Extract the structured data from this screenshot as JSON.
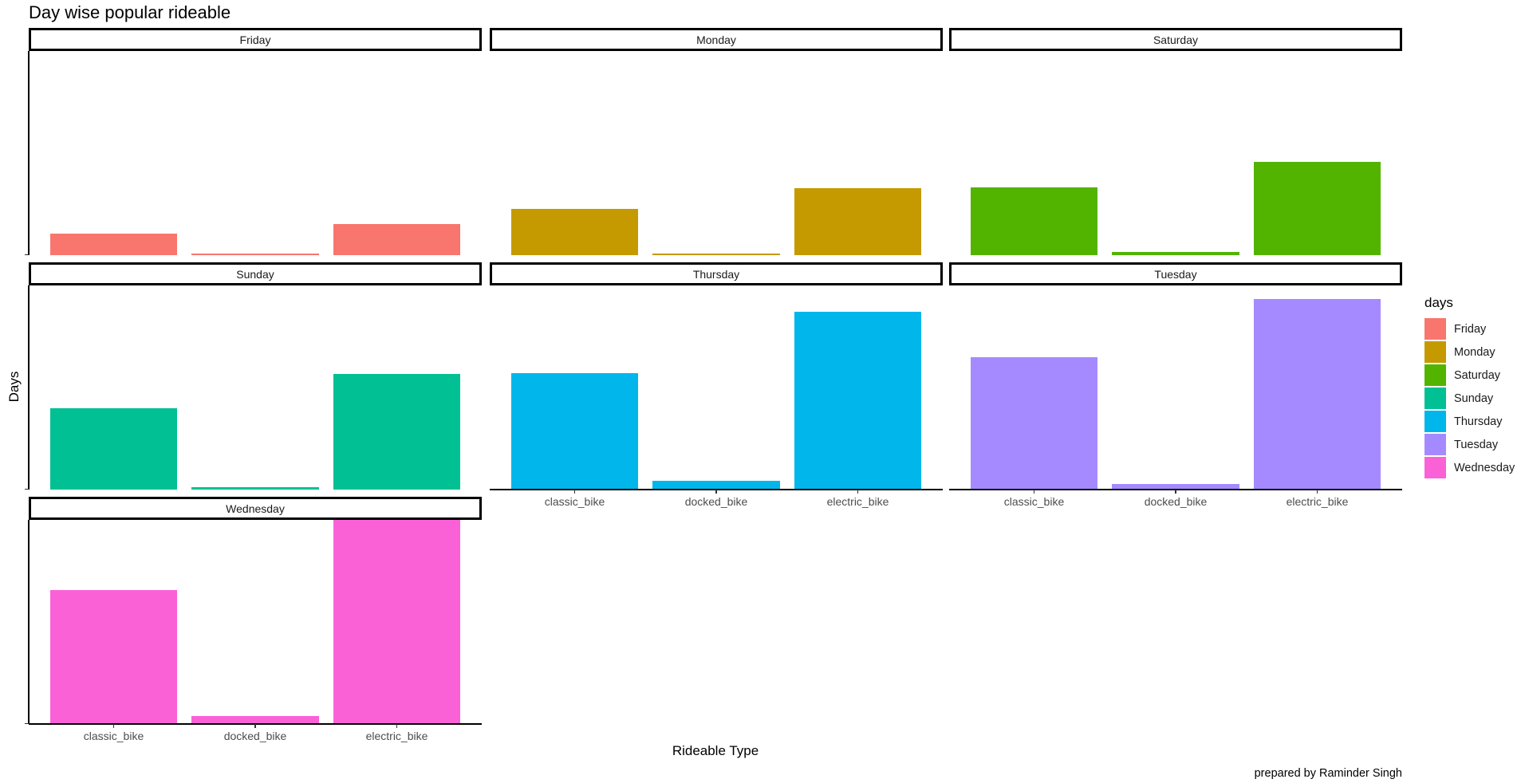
{
  "title": "Day wise popular rideable",
  "caption": "prepared by Raminder Singh",
  "x_axis_title": "Rideable Type",
  "y_axis_title": "Days",
  "legend": {
    "title": "days",
    "items": [
      {
        "label": "Friday",
        "color": "#F8766D"
      },
      {
        "label": "Monday",
        "color": "#C49A00"
      },
      {
        "label": "Saturday",
        "color": "#53B400"
      },
      {
        "label": "Sunday",
        "color": "#00C094"
      },
      {
        "label": "Thursday",
        "color": "#00B6EB"
      },
      {
        "label": "Tuesday",
        "color": "#A58AFF"
      },
      {
        "label": "Wednesday",
        "color": "#FB61D7"
      }
    ]
  },
  "chart_data": {
    "type": "bar",
    "title": "Day wise popular rideable",
    "xlabel": "Rideable Type",
    "ylabel": "Days",
    "caption": "prepared by Raminder Singh",
    "facet_by": "days",
    "facet_layout": {
      "ncol": 3,
      "nrow": 3
    },
    "categories": [
      "classic_bike",
      "docked_bike",
      "electric_bike"
    ],
    "value_scale": "relative (0-100, no y tick labels shown; Wednesday electric_bike = 100)",
    "ylim": [
      0,
      100
    ],
    "grid": false,
    "legend_position": "right",
    "series": [
      {
        "name": "Friday",
        "color": "#F8766D",
        "values": [
          10.5,
          0.8,
          15.2
        ]
      },
      {
        "name": "Monday",
        "color": "#C49A00",
        "values": [
          22.7,
          0.8,
          32.8
        ]
      },
      {
        "name": "Saturday",
        "color": "#53B400",
        "values": [
          33.2,
          1.6,
          45.7
        ]
      },
      {
        "name": "Sunday",
        "color": "#00C094",
        "values": [
          39.8,
          1.2,
          56.6
        ]
      },
      {
        "name": "Thursday",
        "color": "#00B6EB",
        "values": [
          57.0,
          4.3,
          87.1
        ]
      },
      {
        "name": "Tuesday",
        "color": "#A58AFF",
        "values": [
          64.8,
          2.7,
          93.4
        ]
      },
      {
        "name": "Wednesday",
        "color": "#FB61D7",
        "values": [
          65.6,
          3.9,
          100.0
        ]
      }
    ]
  }
}
